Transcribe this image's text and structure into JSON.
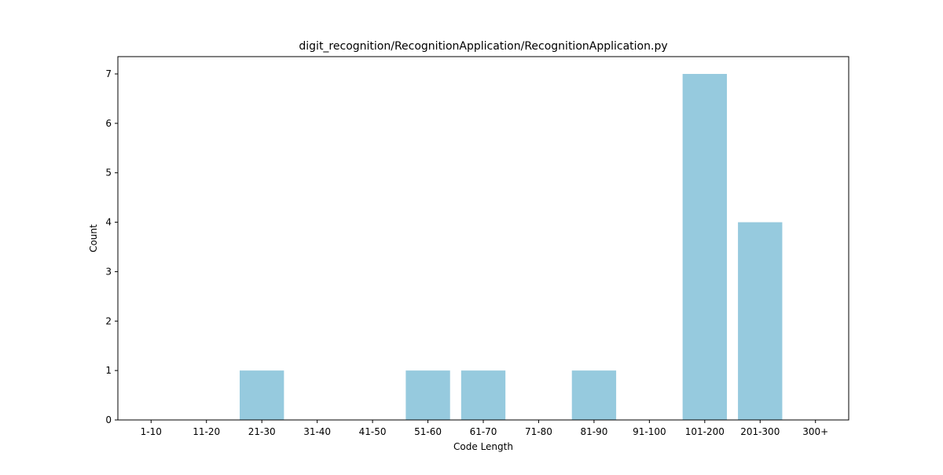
{
  "chart_data": {
    "type": "bar",
    "title": "digit_recognition/RecognitionApplication/RecognitionApplication.py",
    "xlabel": "Code Length",
    "ylabel": "Count",
    "categories": [
      "1-10",
      "11-20",
      "21-30",
      "31-40",
      "41-50",
      "51-60",
      "61-70",
      "71-80",
      "81-90",
      "91-100",
      "101-200",
      "201-300",
      "300+"
    ],
    "values": [
      0,
      0,
      1,
      0,
      0,
      1,
      1,
      0,
      1,
      0,
      7,
      4,
      0
    ],
    "ylim": [
      0,
      7.35
    ],
    "yticks": [
      0,
      1,
      2,
      3,
      4,
      5,
      6,
      7
    ],
    "bar_color": "#96cade",
    "grid": false,
    "legend": "none"
  }
}
